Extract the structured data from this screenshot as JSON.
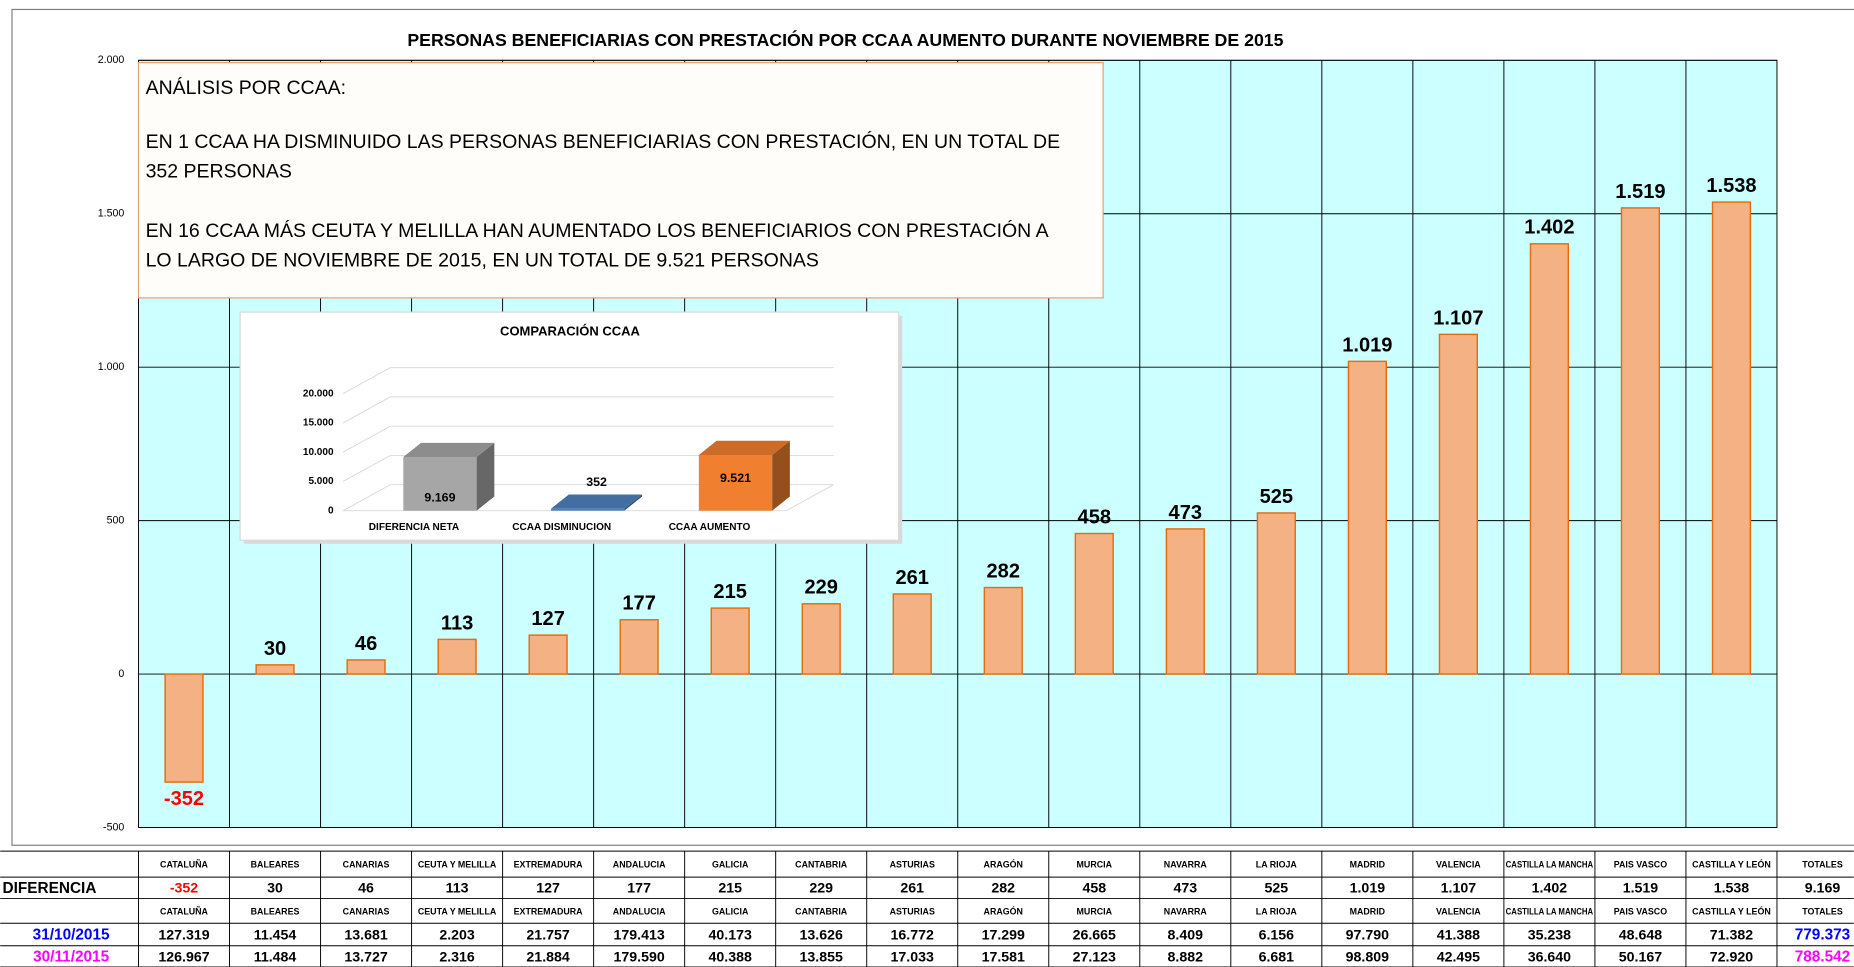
{
  "chart_data": [
    {
      "type": "bar",
      "title": "PERSONAS BENEFICIARIAS CON PRESTACIÓN POR CCAA AUMENTO DURANTE NOVIEMBRE DE 2015",
      "values": [
        -352,
        30,
        46,
        113,
        127,
        177,
        215,
        229,
        261,
        282,
        458,
        473,
        525,
        1019,
        1107,
        1402,
        1519,
        1538
      ],
      "value_labels": [
        "-352",
        "30",
        "46",
        "113",
        "127",
        "177",
        "215",
        "229",
        "261",
        "282",
        "458",
        "473",
        "525",
        "1.019",
        "1.107",
        "1.402",
        "1.519",
        "1.538"
      ],
      "color": "#f4b183",
      "edge_color": "#e46c0a",
      "negative_label_color": "#ff0000",
      "background": "#ccffff",
      "ylim": [
        -500,
        2000
      ],
      "yticks": [
        -500,
        0,
        500,
        {
          "value": 1000,
          "label": "1.000"
        },
        {
          "value": 1500,
          "label": "1.500"
        },
        {
          "value": 2000,
          "label": "2.000"
        }
      ],
      "grid": true,
      "annotation": {
        "heading": "ANÁLISIS POR CCAA:",
        "paragraphs": [
          [
            "EN 1 CCAA HA DISMINUIDO LAS PERSONAS BENEFICIARIAS CON PRESTACIÓN, EN UN TOTAL DE",
            "352 PERSONAS"
          ],
          [
            "EN 16 CCAA MÁS CEUTA Y MELILLA HAN AUMENTADO LOS BENEFICIARIOS CON PRESTACIÓN A",
            "LO LARGO DE NOVIEMBRE DE 2015, EN UN TOTAL DE  9.521 PERSONAS"
          ]
        ]
      }
    },
    {
      "type": "bar3d",
      "title": "COMPARACIÓN CCAA",
      "categories": [
        "DIFERENCIA NETA",
        "CCAA DISMINUCION",
        "CCAA AUMENTO"
      ],
      "values": [
        9169,
        352,
        9521
      ],
      "value_labels": [
        "9.169",
        "352",
        "9.521"
      ],
      "colors": [
        "#a6a6a6",
        "#4f81bd",
        "#f07f2f"
      ],
      "ylim": [
        0,
        20000
      ],
      "yticks": [
        0,
        {
          "value": 5000,
          "label": "5.000"
        },
        {
          "value": 10000,
          "label": "10.000"
        },
        {
          "value": 15000,
          "label": "15.000"
        },
        {
          "value": 20000,
          "label": "20.000"
        }
      ]
    }
  ],
  "table": {
    "rows": [
      {
        "cells": [
          "CATALUÑA",
          "BALEARES",
          "CANARIAS",
          "CEUTA Y MELILLA",
          "EXTREMADURA",
          "ANDALUCIA",
          "GALICIA",
          "CANTABRIA",
          "ASTURIAS",
          "ARAGÓN",
          "MURCIA",
          "NAVARRA",
          "LA RIOJA",
          "MADRID",
          "VALENCIA",
          "CASTILLA LA MANCHA",
          "PAIS VASCO",
          "CASTILLA Y LEÓN",
          "TOTALES"
        ]
      },
      {
        "label": "DIFERENCIA",
        "cells": [
          "-352",
          "30",
          "46",
          "113",
          "127",
          "177",
          "215",
          "229",
          "261",
          "282",
          "458",
          "473",
          "525",
          "1.019",
          "1.107",
          "1.402",
          "1.519",
          "1.538",
          "9.169"
        ]
      },
      {
        "cells": [
          "CATALUÑA",
          "BALEARES",
          "CANARIAS",
          "CEUTA Y MELILLA",
          "EXTREMADURA",
          "ANDALUCIA",
          "GALICIA",
          "CANTABRIA",
          "ASTURIAS",
          "ARAGÓN",
          "MURCIA",
          "NAVARRA",
          "LA RIOJA",
          "MADRID",
          "VALENCIA",
          "CASTILLA LA MANCHA",
          "PAIS VASCO",
          "CASTILLA Y LEÓN",
          "TOTALES"
        ]
      },
      {
        "label": "31/10/2015",
        "color": "#0000ff",
        "cells": [
          "127.319",
          "11.454",
          "13.681",
          "2.203",
          "21.757",
          "179.413",
          "40.173",
          "13.626",
          "16.772",
          "17.299",
          "26.665",
          "8.409",
          "6.156",
          "97.790",
          "41.388",
          "35.238",
          "48.648",
          "71.382",
          "779.373"
        ]
      },
      {
        "label": "30/11/2015",
        "color": "#ff00ff",
        "cells": [
          "126.967",
          "11.484",
          "13.727",
          "2.316",
          "21.884",
          "179.590",
          "40.388",
          "13.855",
          "17.033",
          "17.581",
          "27.123",
          "8.882",
          "6.681",
          "98.809",
          "42.495",
          "36.640",
          "50.167",
          "72.920",
          "788.542"
        ]
      }
    ]
  }
}
